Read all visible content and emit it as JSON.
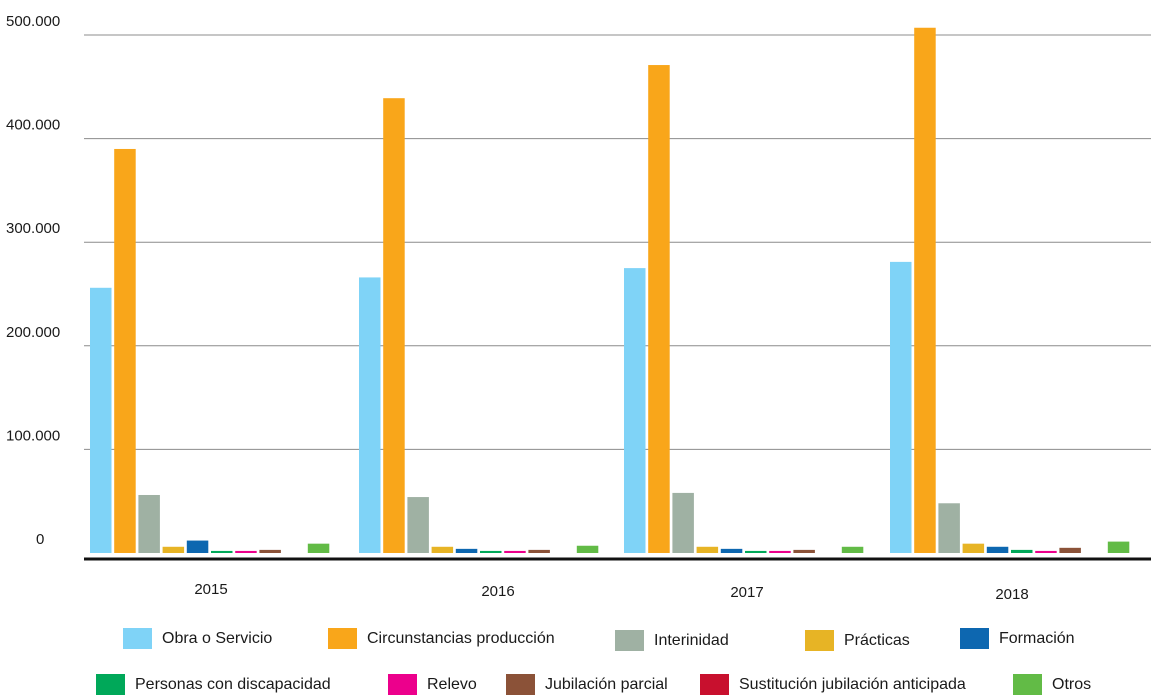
{
  "chart_data": {
    "type": "bar",
    "categories": [
      "2015",
      "2016",
      "2017",
      "2018"
    ],
    "y_ticks": [
      "0",
      "100.000",
      "200.000",
      "300.000",
      "400.000",
      "500.000"
    ],
    "ylim": [
      0,
      500000
    ],
    "grid": true,
    "legend_position": "bottom",
    "series": [
      {
        "name": "Obra o Servicio",
        "color": "#7fd3f7",
        "values": [
          256000,
          266000,
          275000,
          281000
        ]
      },
      {
        "name": "Circunstancias producción",
        "color": "#f9a61a",
        "values": [
          390000,
          439000,
          471000,
          507000
        ]
      },
      {
        "name": "Interinidad",
        "color": "#9fb1a3",
        "values": [
          56000,
          54000,
          58000,
          48000
        ]
      },
      {
        "name": "Prácticas",
        "color": "#e7b425",
        "values": [
          6000,
          6000,
          6000,
          9000
        ]
      },
      {
        "name": "Formación",
        "color": "#0d67b0",
        "values": [
          12000,
          4000,
          4000,
          6000
        ]
      },
      {
        "name": "Personas con discapacidad",
        "color": "#00a859",
        "values": [
          2000,
          2000,
          2000,
          3000
        ]
      },
      {
        "name": "Relevo",
        "color": "#ec008c",
        "values": [
          2000,
          2000,
          2000,
          2000
        ]
      },
      {
        "name": "Jubilación parcial",
        "color": "#8b5238",
        "values": [
          3000,
          3000,
          3000,
          5000
        ]
      },
      {
        "name": "Sustitución jubilación anticipada",
        "color": "#c8102e",
        "values": [
          0,
          0,
          0,
          0
        ]
      },
      {
        "name": "Otros",
        "color": "#62bb46",
        "values": [
          9000,
          7000,
          6000,
          11000
        ]
      }
    ]
  }
}
